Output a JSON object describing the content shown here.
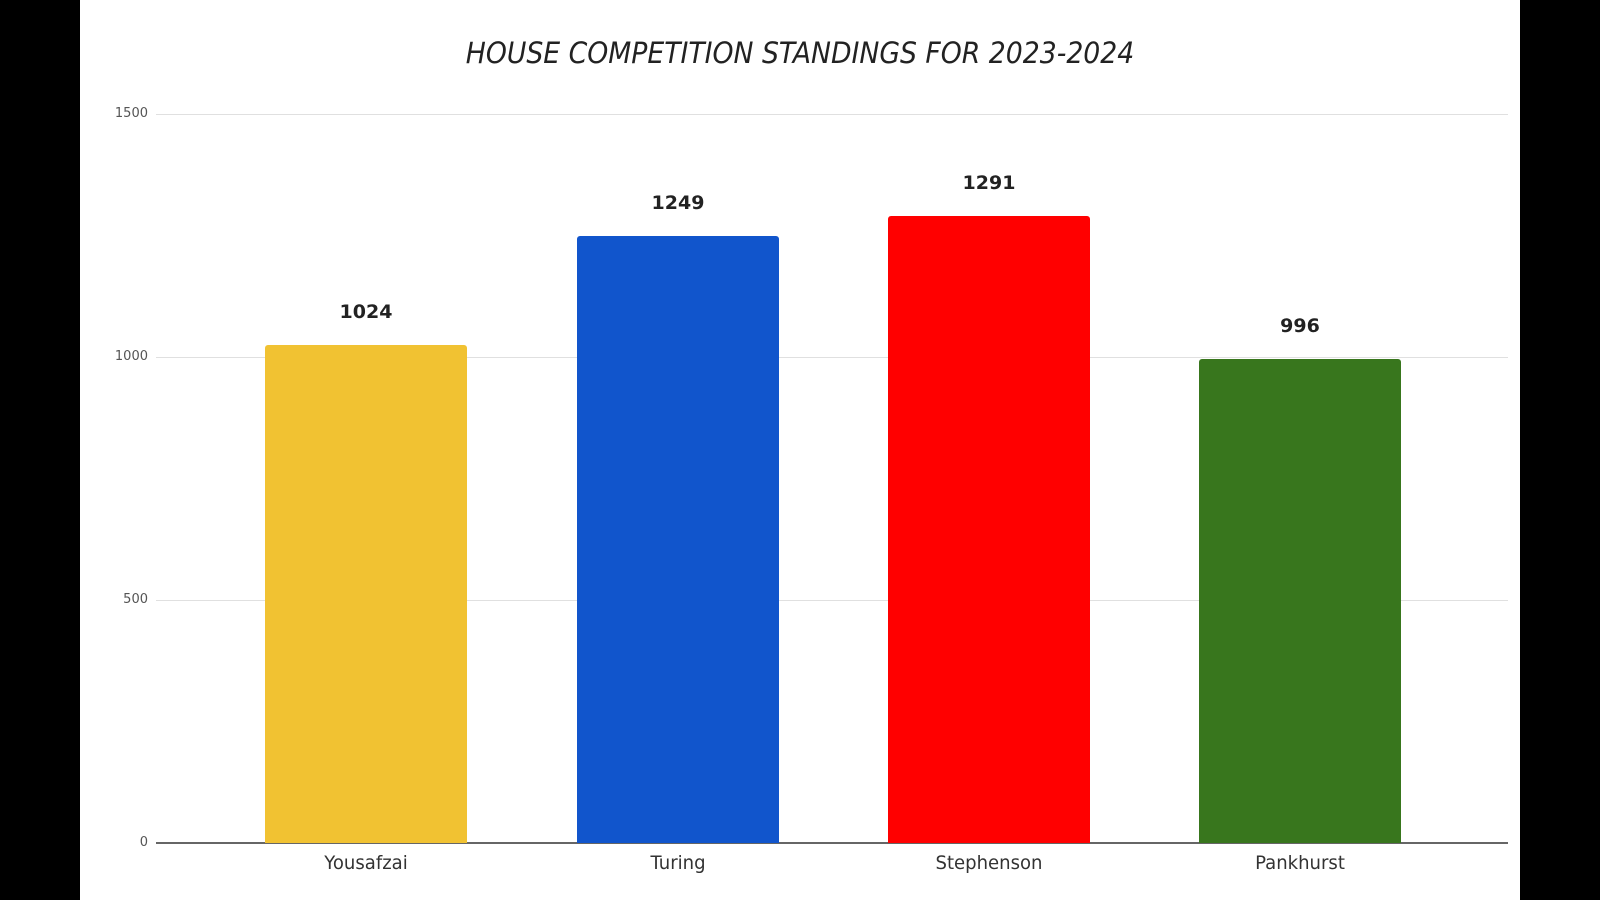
{
  "chart_data": {
    "type": "bar",
    "title": "HOUSE COMPETITION STANDINGS FOR 2023-2024",
    "xlabel": "",
    "ylabel": "",
    "categories": [
      "Yousafzai",
      "Turing",
      "Stephenson",
      "Pankhurst"
    ],
    "values": [
      1024,
      1249,
      1291,
      996
    ],
    "colors": [
      "#F1C232",
      "#1155CC",
      "#FF0000",
      "#38761D"
    ],
    "data_labels": [
      "1024",
      "1249",
      "1291",
      "996"
    ],
    "ylim": [
      0,
      1500
    ],
    "yticks": [
      0,
      500,
      1000,
      1500
    ],
    "ytick_labels": [
      "0",
      "500",
      "1000",
      "1500"
    ],
    "grid": true,
    "legend": "none"
  }
}
